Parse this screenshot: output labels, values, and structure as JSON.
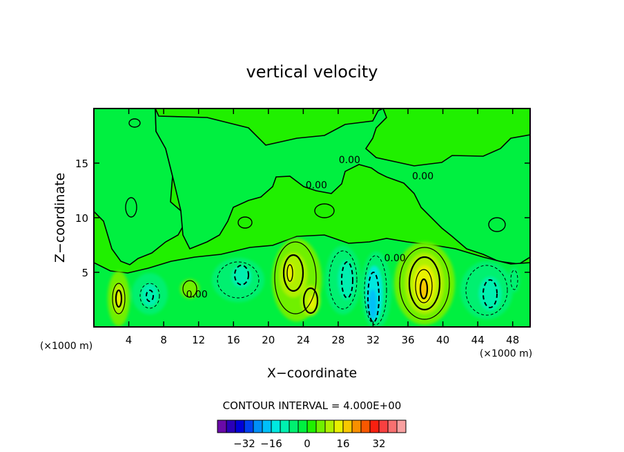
{
  "chart_data": {
    "type": "heatmap",
    "title": "vertical velocity",
    "xlabel": "X−coordinate",
    "ylabel": "Z−coordinate",
    "x_unit_left": "(×1000 m)",
    "x_unit_right": "(×1000 m)",
    "xlim": [
      0,
      50
    ],
    "ylim": [
      0,
      20
    ],
    "x_ticks": [
      4,
      8,
      12,
      16,
      20,
      24,
      28,
      32,
      36,
      40,
      44,
      48
    ],
    "y_ticks": [
      5,
      10,
      15
    ],
    "x_tick_labels": [
      "4",
      "8",
      "12",
      "16",
      "20",
      "24",
      "28",
      "32",
      "36",
      "40",
      "44",
      "48"
    ],
    "y_tick_labels": [
      "5",
      "10",
      "15"
    ],
    "contour_interval_text": "CONTOUR INTERVAL = 4.000E+00",
    "contour_interval": 4.0,
    "contour_labels": [
      {
        "text": "0.00",
        "x": 11.8,
        "y": 2.7
      },
      {
        "text": "0.00",
        "x": 29.3,
        "y": 15.0
      },
      {
        "text": "0.00",
        "x": 25.5,
        "y": 12.7
      },
      {
        "text": "0.00",
        "x": 37.7,
        "y": 13.5
      },
      {
        "text": "0.00",
        "x": 34.5,
        "y": 6.0
      }
    ],
    "cells": [
      {
        "x": 3,
        "z": 3.0,
        "value": 16
      },
      {
        "x": 7,
        "z": 3.0,
        "value": -12
      },
      {
        "x": 10.5,
        "z": 3.2,
        "value": 8
      },
      {
        "x": 17,
        "z": 4.5,
        "value": -12
      },
      {
        "x": 22.5,
        "z": 4.8,
        "value": 16
      },
      {
        "x": 24.7,
        "z": 3.0,
        "value": 16
      },
      {
        "x": 29.5,
        "z": 4.0,
        "value": -16
      },
      {
        "x": 32,
        "z": 3.0,
        "value": -20
      },
      {
        "x": 38,
        "z": 3.5,
        "value": 24
      },
      {
        "x": 45.5,
        "z": 3.0,
        "value": -16
      }
    ],
    "colorbar": {
      "ticks": [
        "−32",
        "−16",
        "0",
        "16",
        "32"
      ],
      "colors": [
        "#6a0aa8",
        "#2a00b8",
        "#0000d8",
        "#0040f0",
        "#0090f8",
        "#00c0f8",
        "#00e8e0",
        "#00f0b0",
        "#00f070",
        "#00f040",
        "#20f000",
        "#70f000",
        "#b0f000",
        "#e8f000",
        "#f8c800",
        "#f89000",
        "#f85800",
        "#f82010",
        "#f84040",
        "#f87070",
        "#f8a0a0"
      ]
    }
  }
}
